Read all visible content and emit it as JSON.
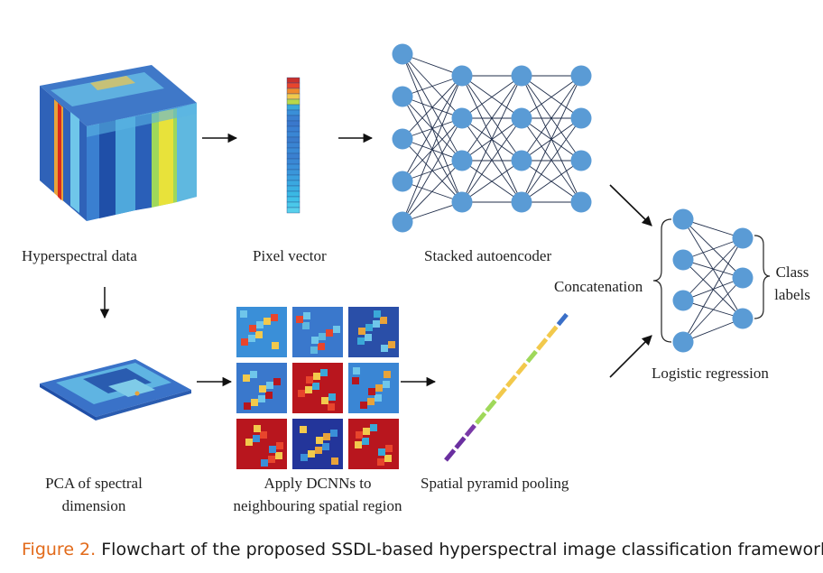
{
  "labels": {
    "hyperspectral_data": "Hyperspectral data",
    "pixel_vector": "Pixel vector",
    "stacked_autoencoder": "Stacked autoencoder",
    "concatenation": "Concatenation",
    "class_labels": "Class labels",
    "logistic_regression": "Logistic regression",
    "pca": "PCA of spectral dimension",
    "dcnn": "Apply DCNNs to neighbouring spatial region",
    "spp": "Spatial pyramid pooling"
  },
  "caption": {
    "figure_number": "Figure 2.",
    "text": "Flowchart of the proposed SSDL-based hyperspectral image classification framework."
  },
  "colors": {
    "node": "#5a9bd5",
    "edge": "#1f2d4a",
    "caption_accent": "#e26a1a"
  }
}
